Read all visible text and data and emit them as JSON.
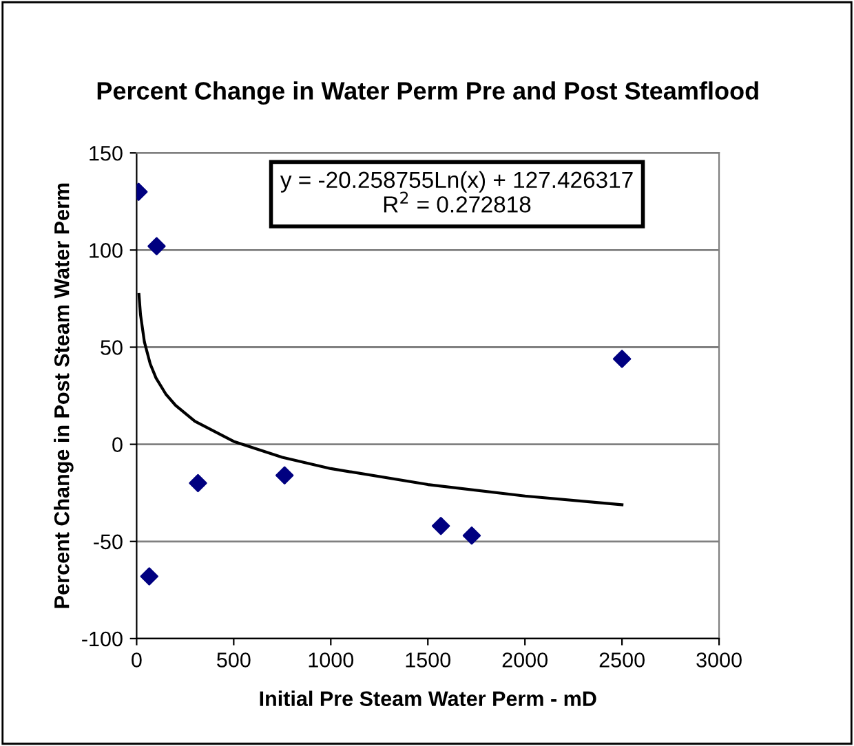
{
  "chart_data": {
    "type": "scatter",
    "title": "Percent Change in Water Perm Pre and Post Steamflood",
    "xlabel": "Initial Pre Steam Water Perm - mD",
    "ylabel": "Percent Change in Post Steam Water Perm",
    "annotations": [
      "y = -20.258755Ln(x) + 127.426317",
      "R$^{2}$ = 0.272818"
    ],
    "series": [
      {
        "color": "#000080",
        "marker": "diamond",
        "x": [
          10,
          103,
          65,
          316,
          762,
          1567,
          1726,
          2500
        ],
        "values": [
          130,
          102,
          -68,
          -20,
          -16,
          -42,
          -47,
          44
        ]
      },
      {
        "type": "line",
        "color": "#000000",
        "marker": "none",
        "line_style": "solid",
        "x": [
          12,
          20,
          40,
          70,
          100,
          150,
          200,
          300,
          500,
          750,
          1000,
          1500,
          2000,
          2500
        ],
        "values": [
          77.1,
          66.7,
          52.7,
          41.4,
          34.1,
          25.9,
          20.1,
          11.9,
          1.5,
          -6.7,
          -12.5,
          -20.7,
          -26.6,
          -31.1
        ]
      }
    ],
    "xlim": [
      0,
      3000
    ],
    "xticks": [
      0,
      500,
      1000,
      1500,
      2000,
      2500,
      3000
    ],
    "ylim": [
      -100,
      150
    ],
    "yticks": [
      -100,
      -50,
      0,
      50,
      100,
      150
    ],
    "grid": "y",
    "legend": false
  }
}
